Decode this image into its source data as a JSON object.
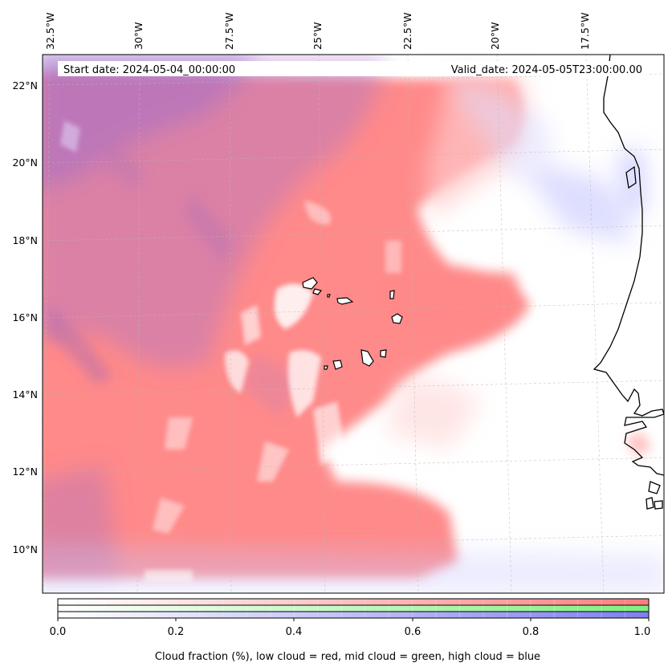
{
  "header": {
    "start_date": "Start date: 2024-05-04_00:00:00",
    "valid_date": "Valid_date: 2024-05-05T23:00:00.00"
  },
  "map": {
    "longitude_labels": [
      "32.5°W",
      "30°W",
      "27.5°W",
      "25°W",
      "22.5°W",
      "20°W",
      "17.5°W"
    ],
    "latitude_labels": [
      "22°N",
      "20°N",
      "18°N",
      "16°N",
      "14°N",
      "12°N",
      "10°N"
    ],
    "gridlines": true,
    "field": "Cloud fraction",
    "colors": {
      "low_cloud": "#ff7f7f",
      "mid_cloud": "#7fef7f",
      "high_cloud": "#7f7fef"
    }
  },
  "colorbar": {
    "ticks": [
      "0.0",
      "0.2",
      "0.4",
      "0.6",
      "0.8",
      "1.0"
    ],
    "label": "Cloud fraction (%), low cloud = red, mid cloud = green, high cloud = blue"
  }
}
